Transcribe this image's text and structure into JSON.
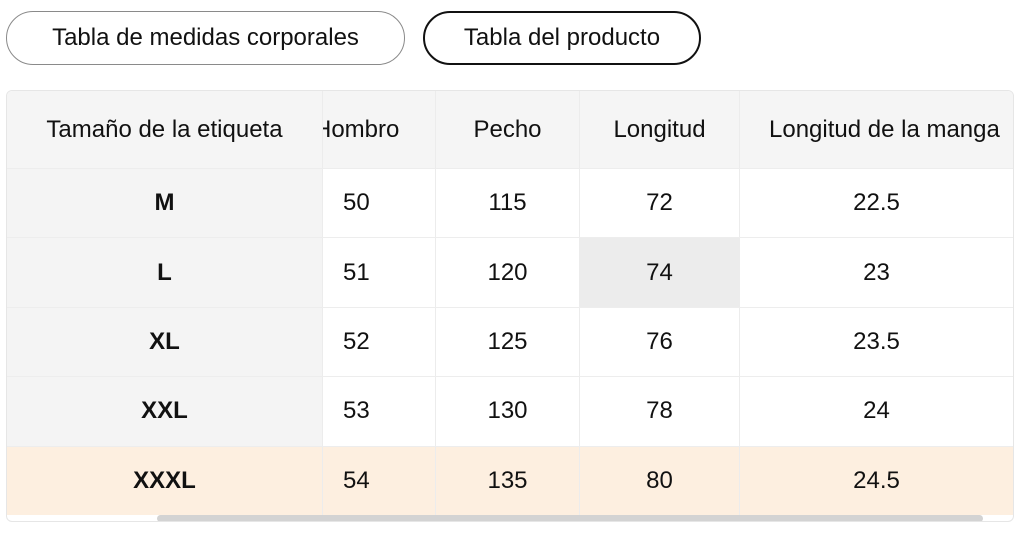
{
  "tabs": {
    "body_chart": "Tabla de medidas corporales",
    "product_chart": "Tabla del producto",
    "selected": "product_chart"
  },
  "table": {
    "headers": [
      "Tamaño de la etiqueta",
      "Hombro",
      "Pecho",
      "Longitud",
      "Longitud de la manga"
    ],
    "rows": [
      [
        "M",
        "50",
        "115",
        "72",
        "22.5"
      ],
      [
        "L",
        "51",
        "120",
        "74",
        "23"
      ],
      [
        "XL",
        "52",
        "125",
        "76",
        "23.5"
      ],
      [
        "XXL",
        "53",
        "130",
        "78",
        "24"
      ],
      [
        "XXXL",
        "54",
        "135",
        "80",
        "24.5"
      ]
    ],
    "highlighted_row_index": 4,
    "highlight_color": "#fdefe0"
  }
}
